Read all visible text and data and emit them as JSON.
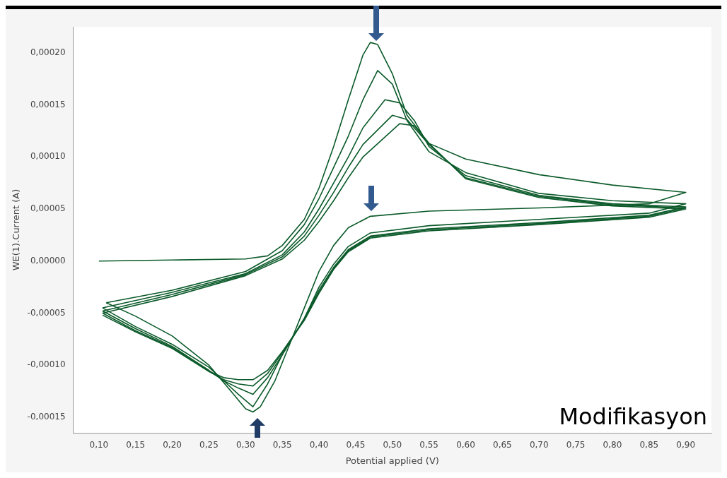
{
  "chart_data": {
    "type": "line",
    "xlabel": "Potential applied (V)",
    "ylabel": "WE(1).Current (A)",
    "xlim": [
      0.065,
      0.935
    ],
    "ylim": [
      -0.000165,
      0.000225
    ],
    "xticks": [
      {
        "value": 0.1,
        "label": "0,10"
      },
      {
        "value": 0.15,
        "label": "0,15"
      },
      {
        "value": 0.2,
        "label": "0,20"
      },
      {
        "value": 0.25,
        "label": "0,25"
      },
      {
        "value": 0.3,
        "label": "0,30"
      },
      {
        "value": 0.35,
        "label": "0,35"
      },
      {
        "value": 0.4,
        "label": "0,40"
      },
      {
        "value": 0.45,
        "label": "0,45"
      },
      {
        "value": 0.5,
        "label": "0,50"
      },
      {
        "value": 0.55,
        "label": "0,55"
      },
      {
        "value": 0.6,
        "label": "0,60"
      },
      {
        "value": 0.65,
        "label": "0,65"
      },
      {
        "value": 0.7,
        "label": "0,70"
      },
      {
        "value": 0.75,
        "label": "0,75"
      },
      {
        "value": 0.8,
        "label": "0,80"
      },
      {
        "value": 0.85,
        "label": "0,85"
      },
      {
        "value": 0.9,
        "label": "0,90"
      }
    ],
    "yticks": [
      {
        "value": -0.00015,
        "label": "-0,00015"
      },
      {
        "value": -0.0001,
        "label": "-0,00010"
      },
      {
        "value": -5e-05,
        "label": "-0,00005"
      },
      {
        "value": 0,
        "label": "0,00000"
      },
      {
        "value": 5e-05,
        "label": "0,00005"
      },
      {
        "value": 0.0001,
        "label": "0,00010"
      },
      {
        "value": 0.00015,
        "label": "0,00015"
      },
      {
        "value": 0.0002,
        "label": "0,00020"
      }
    ],
    "grid": false,
    "marker": "none",
    "line_style": "solid",
    "annotations": [
      "Modifikasyon"
    ],
    "series": [
      {
        "color": "#0b5a2a",
        "x": [
          0.1,
          0.2,
          0.3,
          0.33,
          0.35,
          0.38,
          0.4,
          0.42,
          0.44,
          0.46,
          0.47,
          0.48,
          0.5,
          0.52,
          0.55,
          0.6,
          0.7,
          0.8,
          0.9,
          0.85,
          0.7,
          0.55,
          0.47,
          0.44,
          0.42,
          0.4,
          0.38,
          0.36,
          0.34,
          0.32,
          0.31,
          0.3,
          0.28,
          0.25,
          0.2,
          0.15,
          0.11
        ],
        "values": [
          0,
          1e-06,
          2e-06,
          5e-06,
          1.5e-05,
          4e-05,
          7e-05,
          0.00011,
          0.000155,
          0.000198,
          0.00021,
          0.000208,
          0.00018,
          0.00014,
          0.000113,
          9.8e-05,
          8.3e-05,
          7.3e-05,
          6.6e-05,
          5.5e-05,
          5.1e-05,
          4.8e-05,
          4.3e-05,
          3.2e-05,
          1.5e-05,
          -1e-05,
          -4.5e-05,
          -8e-05,
          -0.000115,
          -0.00014,
          -0.000145,
          -0.000142,
          -0.000125,
          -0.0001,
          -7.2e-05,
          -5.3e-05,
          -4e-05
        ]
      },
      {
        "color": "#0b5a2a",
        "x": [
          0.11,
          0.2,
          0.3,
          0.35,
          0.38,
          0.4,
          0.42,
          0.44,
          0.46,
          0.48,
          0.5,
          0.52,
          0.55,
          0.6,
          0.7,
          0.8,
          0.9,
          0.85,
          0.7,
          0.55,
          0.47,
          0.44,
          0.42,
          0.4,
          0.38,
          0.35,
          0.33,
          0.31,
          0.29,
          0.27,
          0.25,
          0.2,
          0.15,
          0.105
        ],
        "values": [
          -4e-05,
          -2.8e-05,
          -1e-05,
          1e-05,
          3.5e-05,
          6e-05,
          9e-05,
          0.00012,
          0.000155,
          0.000183,
          0.00017,
          0.000135,
          0.000105,
          8.5e-05,
          6.5e-05,
          5.8e-05,
          5.5e-05,
          4.6e-05,
          4e-05,
          3.4e-05,
          2.7e-05,
          1.4e-05,
          -3e-06,
          -2.5e-05,
          -5.5e-05,
          -9e-05,
          -0.000118,
          -0.00014,
          -0.000128,
          -0.000115,
          -0.000102,
          -8e-05,
          -6.3e-05,
          -4.5e-05
        ]
      },
      {
        "color": "#0b5a2a",
        "x": [
          0.105,
          0.2,
          0.3,
          0.35,
          0.38,
          0.4,
          0.42,
          0.44,
          0.46,
          0.49,
          0.51,
          0.53,
          0.55,
          0.6,
          0.7,
          0.8,
          0.9,
          0.85,
          0.7,
          0.55,
          0.47,
          0.44,
          0.42,
          0.4,
          0.38,
          0.35,
          0.33,
          0.31,
          0.29,
          0.27,
          0.25,
          0.2,
          0.15,
          0.105
        ],
        "values": [
          -4.5e-05,
          -3e-05,
          -1.2e-05,
          6e-06,
          2.8e-05,
          5e-05,
          7.5e-05,
          0.0001,
          0.000128,
          0.000155,
          0.000152,
          0.000135,
          0.00011,
          8.2e-05,
          6.3e-05,
          5.5e-05,
          5.2e-05,
          4.4e-05,
          3.7e-05,
          3.1e-05,
          2.4e-05,
          1.1e-05,
          -6e-06,
          -2.8e-05,
          -5.5e-05,
          -9e-05,
          -0.000112,
          -0.000128,
          -0.000122,
          -0.000115,
          -0.000105,
          -8.2e-05,
          -6.5e-05,
          -4.8e-05
        ]
      },
      {
        "color": "#0b5a2a",
        "x": [
          0.105,
          0.2,
          0.3,
          0.35,
          0.38,
          0.4,
          0.42,
          0.44,
          0.46,
          0.5,
          0.52,
          0.55,
          0.6,
          0.7,
          0.8,
          0.9,
          0.85,
          0.7,
          0.55,
          0.47,
          0.44,
          0.42,
          0.4,
          0.38,
          0.35,
          0.33,
          0.31,
          0.29,
          0.27,
          0.25,
          0.2,
          0.15,
          0.105
        ],
        "values": [
          -4.8e-05,
          -3.2e-05,
          -1.3e-05,
          4e-06,
          2.4e-05,
          4.4e-05,
          6.6e-05,
          9e-05,
          0.000112,
          0.00014,
          0.000136,
          0.000112,
          8e-05,
          6.2e-05,
          5.4e-05,
          5.1e-05,
          4.3e-05,
          3.6e-05,
          3e-05,
          2.3e-05,
          1e-05,
          -7e-06,
          -3e-05,
          -5.6e-05,
          -8.8e-05,
          -0.000108,
          -0.00012,
          -0.000118,
          -0.000114,
          -0.000106,
          -8.3e-05,
          -6.7e-05,
          -5e-05
        ]
      },
      {
        "color": "#0b5a2a",
        "x": [
          0.105,
          0.2,
          0.3,
          0.35,
          0.38,
          0.4,
          0.42,
          0.44,
          0.46,
          0.51,
          0.53,
          0.55,
          0.6,
          0.7,
          0.8,
          0.9,
          0.85,
          0.7,
          0.55,
          0.47,
          0.44,
          0.42,
          0.4,
          0.38,
          0.35,
          0.33,
          0.31,
          0.29,
          0.27,
          0.25,
          0.2,
          0.15,
          0.105
        ],
        "values": [
          -5e-05,
          -3.4e-05,
          -1.4e-05,
          2e-06,
          2e-05,
          3.8e-05,
          5.8e-05,
          8e-05,
          0.0001,
          0.000132,
          0.00013,
          0.000113,
          7.9e-05,
          6.1e-05,
          5.3e-05,
          5e-05,
          4.2e-05,
          3.5e-05,
          2.9e-05,
          2.2e-05,
          9e-06,
          -8e-06,
          -3.1e-05,
          -5.7e-05,
          -8.7e-05,
          -0.000105,
          -0.000114,
          -0.000114,
          -0.000112,
          -0.000106,
          -8.4e-05,
          -6.8e-05,
          -5.2e-05
        ]
      }
    ]
  }
}
